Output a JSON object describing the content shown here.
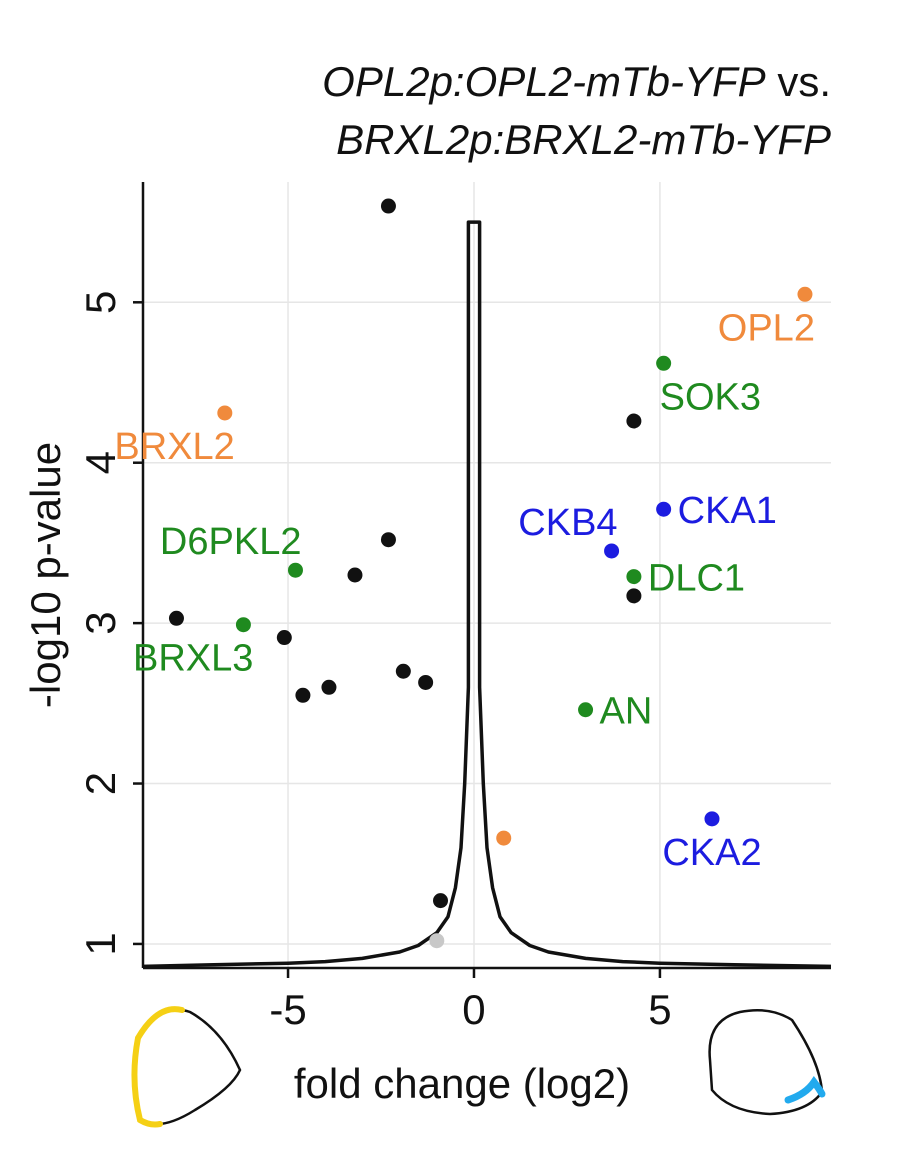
{
  "chart_data": {
    "type": "scatter",
    "title": {
      "line1_italic": "OPL2p:OPL2-mTb-YFP",
      "line1_plain": " vs.",
      "line2_italic": "BRXL2p:BRXL2-mTb-YFP"
    },
    "xlabel": "fold change (log2)",
    "ylabel": "-log10 p-value",
    "xlim": [
      -8.9,
      9.6
    ],
    "ylim": [
      0.85,
      5.75
    ],
    "xticks": [
      -5,
      0,
      5
    ],
    "yticks": [
      1,
      2,
      3,
      4,
      5
    ],
    "grid": true,
    "colors": {
      "black": "#111111",
      "orange": "#f08a3c",
      "green": "#1f8a1f",
      "blue": "#1c1ce0",
      "grey": "#c8c8c8",
      "yellow": "#f5d015",
      "cyan": "#22aaee"
    },
    "points": [
      {
        "x": -2.3,
        "y": 5.6,
        "color": "black",
        "label": ""
      },
      {
        "x": -8.0,
        "y": 3.03,
        "color": "black",
        "label": ""
      },
      {
        "x": -5.1,
        "y": 2.91,
        "color": "black",
        "label": ""
      },
      {
        "x": -4.6,
        "y": 2.55,
        "color": "black",
        "label": ""
      },
      {
        "x": -3.9,
        "y": 2.6,
        "color": "black",
        "label": ""
      },
      {
        "x": -3.2,
        "y": 3.3,
        "color": "black",
        "label": ""
      },
      {
        "x": -2.3,
        "y": 3.52,
        "color": "black",
        "label": ""
      },
      {
        "x": -1.9,
        "y": 2.7,
        "color": "black",
        "label": ""
      },
      {
        "x": -1.3,
        "y": 2.63,
        "color": "black",
        "label": ""
      },
      {
        "x": -0.9,
        "y": 1.27,
        "color": "black",
        "label": ""
      },
      {
        "x": -1.0,
        "y": 1.02,
        "color": "grey",
        "label": ""
      },
      {
        "x": 4.3,
        "y": 4.26,
        "color": "black",
        "label": ""
      },
      {
        "x": 4.3,
        "y": 3.17,
        "color": "black",
        "label": ""
      },
      {
        "x": -6.7,
        "y": 4.31,
        "color": "orange",
        "label": "BRXL2",
        "label_pos": "below-left"
      },
      {
        "x": 8.9,
        "y": 5.05,
        "color": "orange",
        "label": "OPL2",
        "label_pos": "below-left"
      },
      {
        "x": 0.8,
        "y": 1.66,
        "color": "orange",
        "label": ""
      },
      {
        "x": 5.1,
        "y": 4.62,
        "color": "green",
        "label": "SOK3",
        "label_pos": "below-right"
      },
      {
        "x": -4.8,
        "y": 3.33,
        "color": "green",
        "label": "D6PKL2",
        "label_pos": "above-left"
      },
      {
        "x": -6.2,
        "y": 2.99,
        "color": "green",
        "label": "BRXL3",
        "label_pos": "below-left"
      },
      {
        "x": 4.3,
        "y": 3.29,
        "color": "green",
        "label": "DLC1",
        "label_pos": "right"
      },
      {
        "x": 3.0,
        "y": 2.46,
        "color": "green",
        "label": "AN",
        "label_pos": "right"
      },
      {
        "x": 5.1,
        "y": 3.71,
        "color": "blue",
        "label": "CKA1",
        "label_pos": "right"
      },
      {
        "x": 3.7,
        "y": 3.45,
        "color": "blue",
        "label": "CKB4",
        "label_pos": "above-left"
      },
      {
        "x": 6.4,
        "y": 1.78,
        "color": "blue",
        "label": "CKA2",
        "label_pos": "below"
      }
    ],
    "density_curve": {
      "description": "histogram outline of null distribution",
      "x": [
        -8.9,
        -7,
        -5,
        -4,
        -3,
        -2,
        -1.5,
        -1,
        -0.7,
        -0.5,
        -0.35,
        -0.25,
        -0.15,
        -0.15,
        0.15,
        0.15,
        0.25,
        0.35,
        0.5,
        0.7,
        1,
        1.5,
        2,
        3,
        4,
        5,
        7,
        9.6
      ],
      "y": [
        0.86,
        0.87,
        0.88,
        0.89,
        0.91,
        0.95,
        0.99,
        1.07,
        1.17,
        1.35,
        1.6,
        2.0,
        2.6,
        5.5,
        5.5,
        2.6,
        2.0,
        1.6,
        1.35,
        1.17,
        1.07,
        0.99,
        0.95,
        0.91,
        0.89,
        0.88,
        0.87,
        0.86
      ]
    }
  }
}
